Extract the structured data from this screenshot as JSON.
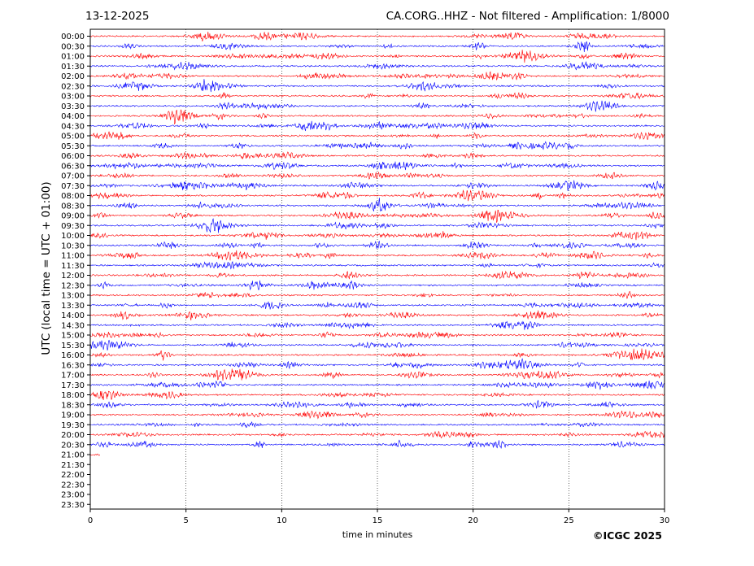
{
  "header": {
    "date": "13-12-2025",
    "title": "CA.CORG..HHZ - Not filtered - Amplification: 1/8000"
  },
  "footer": {
    "credit": "©ICGC 2025"
  },
  "chart_data": {
    "type": "line",
    "title": "CA.CORG..HHZ - Not filtered - Amplification: 1/8000",
    "xlabel": "time in minutes",
    "ylabel": "UTC (local time = UTC + 01:00)",
    "xlim": [
      0,
      30
    ],
    "x_ticks": [
      0,
      5,
      10,
      15,
      20,
      25,
      30
    ],
    "row_labels": [
      "00:00",
      "00:30",
      "01:00",
      "01:30",
      "02:00",
      "02:30",
      "03:00",
      "03:30",
      "04:00",
      "04:30",
      "05:00",
      "05:30",
      "06:00",
      "06:30",
      "07:00",
      "07:30",
      "08:00",
      "08:30",
      "09:00",
      "09:30",
      "10:00",
      "10:30",
      "11:00",
      "11:30",
      "12:00",
      "12:30",
      "13:00",
      "13:30",
      "14:00",
      "14:30",
      "15:00",
      "15:30",
      "16:00",
      "16:30",
      "17:00",
      "17:30",
      "18:00",
      "18:30",
      "19:00",
      "19:30",
      "20:00",
      "20:30",
      "21:00",
      "21:30",
      "22:00",
      "22:30",
      "23:00",
      "23:30"
    ],
    "trace_colors": [
      "#ff0000",
      "#0000ff"
    ],
    "traces_recorded_minutes": [
      30,
      30,
      30,
      30,
      30,
      30,
      30,
      30,
      30,
      30,
      30,
      30,
      30,
      30,
      30,
      30,
      30,
      30,
      30,
      30,
      30,
      30,
      30,
      30,
      30,
      30,
      30,
      30,
      30,
      30,
      30,
      30,
      30,
      30,
      30,
      30,
      30,
      30,
      30,
      30,
      30,
      30,
      0.5,
      0,
      0,
      0,
      0,
      0
    ],
    "grid": "vertical dotted lines at x ticks"
  }
}
